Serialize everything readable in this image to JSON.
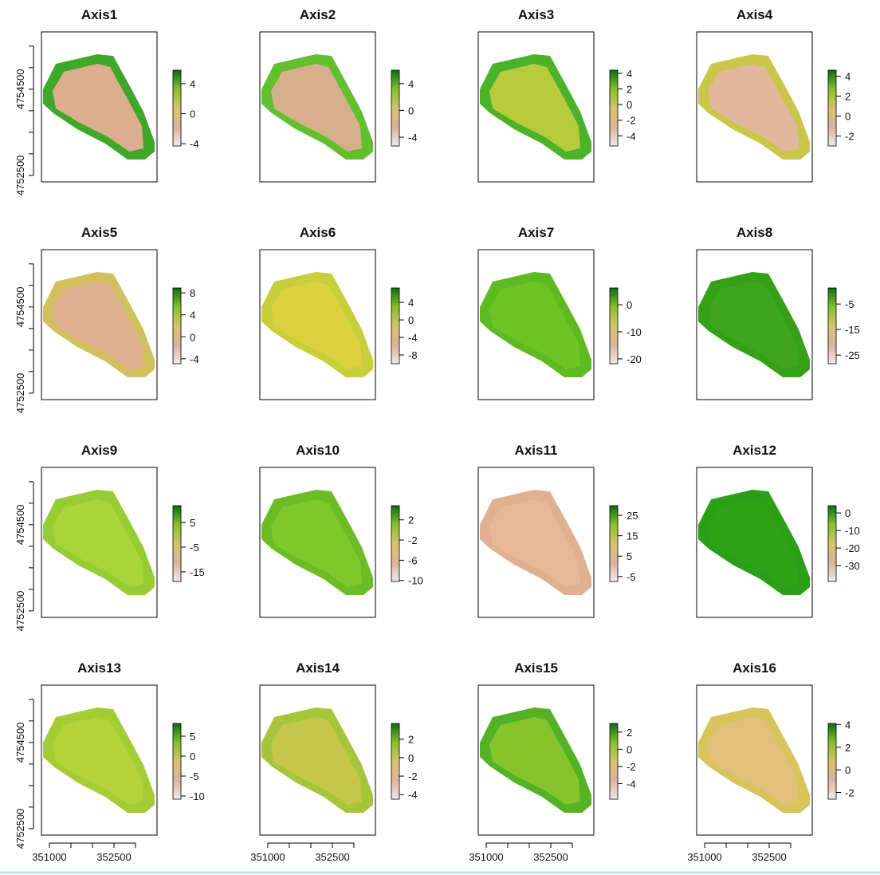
{
  "chart_data": [
    {
      "type": "raster",
      "title": "Axis1",
      "color": "#dcae8e",
      "edge_color": "#3fa82a",
      "zlim": [
        -4.3,
        5.8
      ],
      "zticks": [
        4,
        0,
        -4
      ],
      "ylim": [
        4752350,
        4755830
      ],
      "yticks": [
        4752500,
        4754500
      ],
      "yminor": [
        4753000,
        4753500,
        4754000,
        4755000,
        4755500
      ]
    },
    {
      "type": "raster",
      "title": "Axis2",
      "color": "#d6b08a",
      "edge_color": "#62c030",
      "zlim": [
        -5.3,
        6
      ],
      "zticks": [
        4,
        0,
        -4
      ]
    },
    {
      "type": "raster",
      "title": "Axis3",
      "color": "#b7cc3c",
      "edge_color": "#4bb22a",
      "zlim": [
        -5.3,
        4.4
      ],
      "zticks": [
        4,
        2,
        0,
        -2,
        -4
      ]
    },
    {
      "type": "raster",
      "title": "Axis4",
      "color": "#e1b89c",
      "edge_color": "#c9c64a",
      "zlim": [
        -3.0,
        4.6
      ],
      "zticks": [
        4,
        2,
        0,
        -2
      ]
    },
    {
      "type": "raster",
      "title": "Axis5",
      "color": "#deb08e",
      "edge_color": "#d2c060",
      "zlim": [
        -4.9,
        8.9
      ],
      "zticks": [
        8,
        4,
        0,
        -4
      ],
      "ylim": [
        4752350,
        4755830
      ],
      "yticks": [
        4752500,
        4754500
      ],
      "yminor": [
        4753000,
        4753500,
        4754000,
        4755000,
        4755500
      ]
    },
    {
      "type": "raster",
      "title": "Axis6",
      "color": "#dcd240",
      "edge_color": "#c8cf3a",
      "zlim": [
        -10,
        7.3
      ],
      "zticks": [
        4,
        0,
        -4,
        -8
      ]
    },
    {
      "type": "raster",
      "title": "Axis7",
      "color": "#6fc425",
      "edge_color": "#5fba22",
      "zlim": [
        -21.8,
        6.2
      ],
      "zticks": [
        0,
        -10,
        -20
      ]
    },
    {
      "type": "raster",
      "title": "Axis8",
      "color": "#3ea61c",
      "edge_color": "#35a018",
      "zlim": [
        -28.4,
        1.3
      ],
      "zticks": [
        -5,
        -15,
        -25
      ]
    },
    {
      "type": "raster",
      "title": "Axis9",
      "color": "#a9d53a",
      "edge_color": "#97cd33",
      "zlim": [
        -18.9,
        11.8
      ],
      "zticks": [
        5,
        -5,
        -15
      ],
      "ylim": [
        4752350,
        4755830
      ],
      "yticks": [
        4752500,
        4754500
      ],
      "yminor": [
        4753000,
        4753500,
        4754000,
        4755000,
        4755500
      ]
    },
    {
      "type": "raster",
      "title": "Axis10",
      "color": "#7ec82b",
      "edge_color": "#6cbd25",
      "zlim": [
        -10.2,
        4.8
      ],
      "zticks": [
        2,
        -2,
        -6,
        -10
      ]
    },
    {
      "type": "raster",
      "title": "Axis11",
      "color": "#e6b896",
      "edge_color": "#e0b090",
      "zlim": [
        -7.4,
        29.7
      ],
      "zticks": [
        25,
        15,
        5,
        -5
      ]
    },
    {
      "type": "raster",
      "title": "Axis12",
      "color": "#2ea318",
      "edge_color": "#29a015",
      "zlim": [
        -39,
        4.1
      ],
      "zticks": [
        0,
        -10,
        -20,
        -30
      ]
    },
    {
      "type": "raster",
      "title": "Axis13",
      "color": "#b4d23a",
      "edge_color": "#a6cc35",
      "zlim": [
        -10.8,
        8.2
      ],
      "zticks": [
        5,
        0,
        -5,
        -10
      ],
      "ylim": [
        4752350,
        4755830
      ],
      "yticks": [
        4752500,
        4754500
      ],
      "yminor": [
        4753000,
        4753500,
        4754000,
        4755000,
        4755500
      ],
      "xlim": [
        350815,
        353500
      ],
      "xticks": [
        351000,
        352500
      ],
      "xminor": [
        351500,
        352000,
        353000
      ]
    },
    {
      "type": "raster",
      "title": "Axis14",
      "color": "#c5c74a",
      "edge_color": "#a7c53a",
      "zlim": [
        -4.5,
        3.7
      ],
      "zticks": [
        2,
        0,
        -2,
        -4
      ],
      "xlim": [
        350815,
        353500
      ],
      "xticks": [
        351000,
        352500
      ],
      "xminor": [
        351500,
        352000,
        353000
      ]
    },
    {
      "type": "raster",
      "title": "Axis15",
      "color": "#86c42c",
      "edge_color": "#55b226",
      "zlim": [
        -5.8,
        3
      ],
      "zticks": [
        2,
        0,
        -2,
        -4
      ],
      "xlim": [
        350815,
        353500
      ],
      "xticks": [
        351000,
        352500
      ],
      "xminor": [
        351500,
        352000,
        353000
      ]
    },
    {
      "type": "raster",
      "title": "Axis16",
      "color": "#e0c07a",
      "edge_color": "#d7c45a",
      "zlim": [
        -2.6,
        4.1
      ],
      "zticks": [
        4,
        2,
        0,
        -2
      ],
      "xlim": [
        350815,
        353500
      ],
      "xticks": [
        351000,
        352500
      ],
      "xminor": [
        351500,
        352000,
        353000
      ]
    }
  ]
}
